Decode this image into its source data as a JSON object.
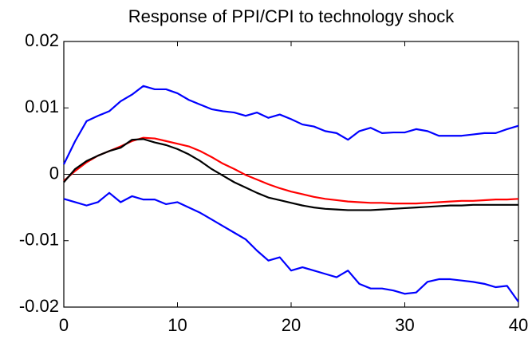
{
  "chart_data": {
    "type": "line",
    "title": "Response of PPI/CPI to technology shock",
    "x": [
      0,
      1,
      2,
      3,
      4,
      5,
      6,
      7,
      8,
      9,
      10,
      11,
      12,
      13,
      14,
      15,
      16,
      17,
      18,
      19,
      20,
      21,
      22,
      23,
      24,
      25,
      26,
      27,
      28,
      29,
      30,
      31,
      32,
      33,
      34,
      35,
      36,
      37,
      38,
      39,
      40
    ],
    "series": [
      {
        "color": "#0000ff",
        "values": [
          0.0015,
          0.005,
          0.008,
          0.0088,
          0.0095,
          0.011,
          0.012,
          0.0133,
          0.0128,
          0.0128,
          0.0122,
          0.0112,
          0.0105,
          0.0098,
          0.0095,
          0.0093,
          0.0088,
          0.0093,
          0.0085,
          0.009,
          0.0083,
          0.0075,
          0.0072,
          0.0065,
          0.0062,
          0.0052,
          0.0065,
          0.007,
          0.0062,
          0.0063,
          0.0063,
          0.0068,
          0.0065,
          0.0058,
          0.0058,
          0.0058,
          0.006,
          0.0062,
          0.0062,
          0.0068,
          0.0073
        ]
      },
      {
        "color": "#0000ff",
        "values": [
          -0.0037,
          -0.0042,
          -0.0047,
          -0.0042,
          -0.0028,
          -0.0042,
          -0.0033,
          -0.0038,
          -0.0038,
          -0.0045,
          -0.0042,
          -0.005,
          -0.0058,
          -0.0068,
          -0.0078,
          -0.0088,
          -0.0098,
          -0.0115,
          -0.013,
          -0.0125,
          -0.0145,
          -0.014,
          -0.0145,
          -0.015,
          -0.0155,
          -0.0145,
          -0.0165,
          -0.0172,
          -0.0172,
          -0.0175,
          -0.018,
          -0.0178,
          -0.0162,
          -0.0158,
          -0.0158,
          -0.016,
          -0.0162,
          -0.0165,
          -0.017,
          -0.0168,
          -0.0192
        ]
      },
      {
        "color": "#ff0000",
        "values": [
          -0.001,
          0.0005,
          0.0018,
          0.0028,
          0.0035,
          0.0042,
          0.005,
          0.0055,
          0.0054,
          0.005,
          0.0046,
          0.0042,
          0.0035,
          0.0026,
          0.0016,
          0.0008,
          -0.0001,
          -0.0008,
          -0.0015,
          -0.0021,
          -0.0026,
          -0.003,
          -0.0034,
          -0.0037,
          -0.0039,
          -0.0041,
          -0.0042,
          -0.0043,
          -0.0043,
          -0.0044,
          -0.0044,
          -0.0044,
          -0.0043,
          -0.0042,
          -0.0041,
          -0.004,
          -0.004,
          -0.0039,
          -0.0038,
          -0.0038,
          -0.0037
        ]
      },
      {
        "color": "#000000",
        "values": [
          -0.0012,
          0.0008,
          0.002,
          0.0028,
          0.0035,
          0.004,
          0.0052,
          0.0053,
          0.0048,
          0.0044,
          0.0038,
          0.003,
          0.002,
          0.0008,
          -0.0002,
          -0.0012,
          -0.002,
          -0.0028,
          -0.0035,
          -0.0039,
          -0.0043,
          -0.0047,
          -0.005,
          -0.0052,
          -0.0053,
          -0.0054,
          -0.0054,
          -0.0054,
          -0.0053,
          -0.0052,
          -0.0051,
          -0.005,
          -0.0049,
          -0.0048,
          -0.0047,
          -0.0047,
          -0.0046,
          -0.0046,
          -0.0046,
          -0.0046,
          -0.0046
        ]
      }
    ],
    "xlim": [
      0,
      40
    ],
    "xticks": [
      0,
      10,
      20,
      30,
      40
    ],
    "ylim": [
      -0.02,
      0.02
    ],
    "yticks": [
      -0.02,
      -0.01,
      0,
      0.01,
      0.02
    ],
    "zero_line": true,
    "grid": false
  }
}
